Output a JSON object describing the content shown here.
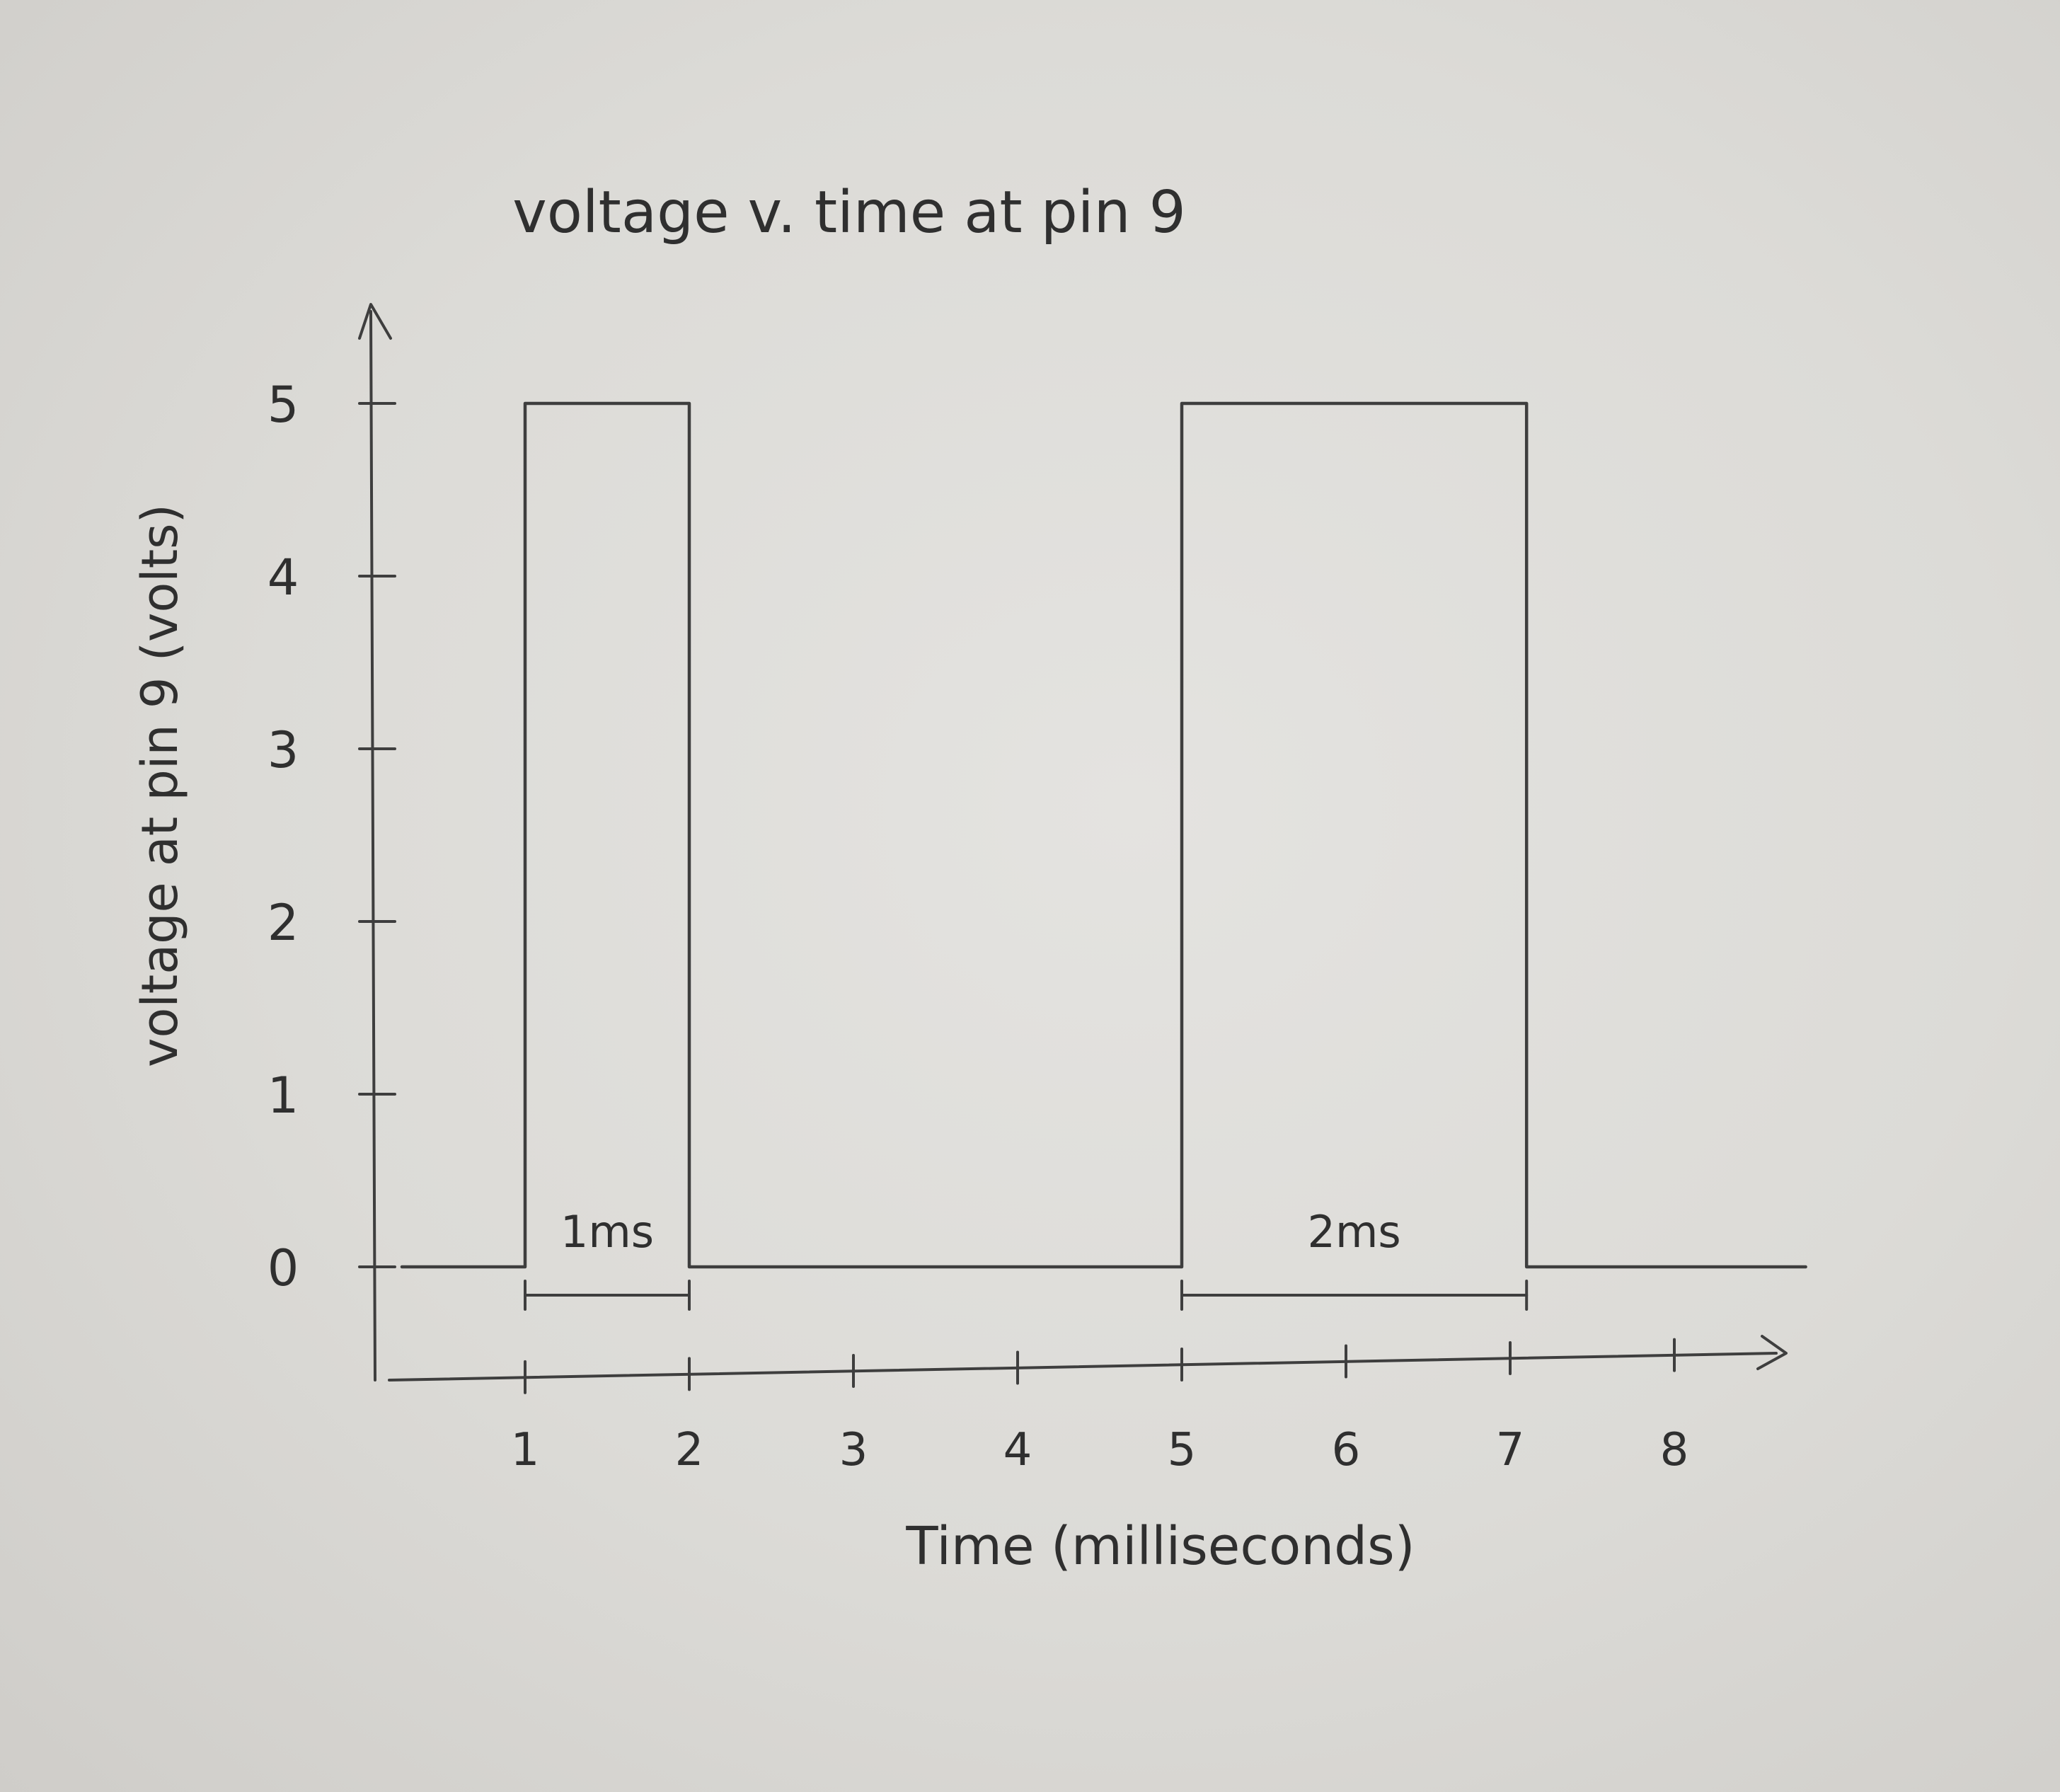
{
  "chart_data": {
    "type": "line",
    "title": "voltage v. time at pin 9",
    "xlabel": "Time (milliseconds)",
    "ylabel": "voltage at pin 9 (volts)",
    "x_ticks": [
      "1",
      "2",
      "3",
      "4",
      "5",
      "6",
      "7",
      "8"
    ],
    "y_ticks": [
      "0",
      "1",
      "2",
      "3",
      "4",
      "5"
    ],
    "xlim": [
      0,
      8.8
    ],
    "ylim": [
      0,
      5.6
    ],
    "grid": false,
    "series": [
      {
        "x": [
          0.25,
          1.0,
          1.0,
          2.0,
          2.0,
          5.0,
          5.0,
          7.1,
          7.1,
          8.8
        ],
        "values": [
          0,
          0,
          5,
          5,
          0,
          0,
          5,
          5,
          0,
          0
        ]
      }
    ],
    "annotations": [
      {
        "text": "1ms",
        "from": 1.0,
        "to": 2.0
      },
      {
        "text": "2ms",
        "from": 5.0,
        "to": 7.1
      }
    ],
    "colors": {
      "ink": "#3e3e3e",
      "paper": "#dedcd8"
    }
  }
}
